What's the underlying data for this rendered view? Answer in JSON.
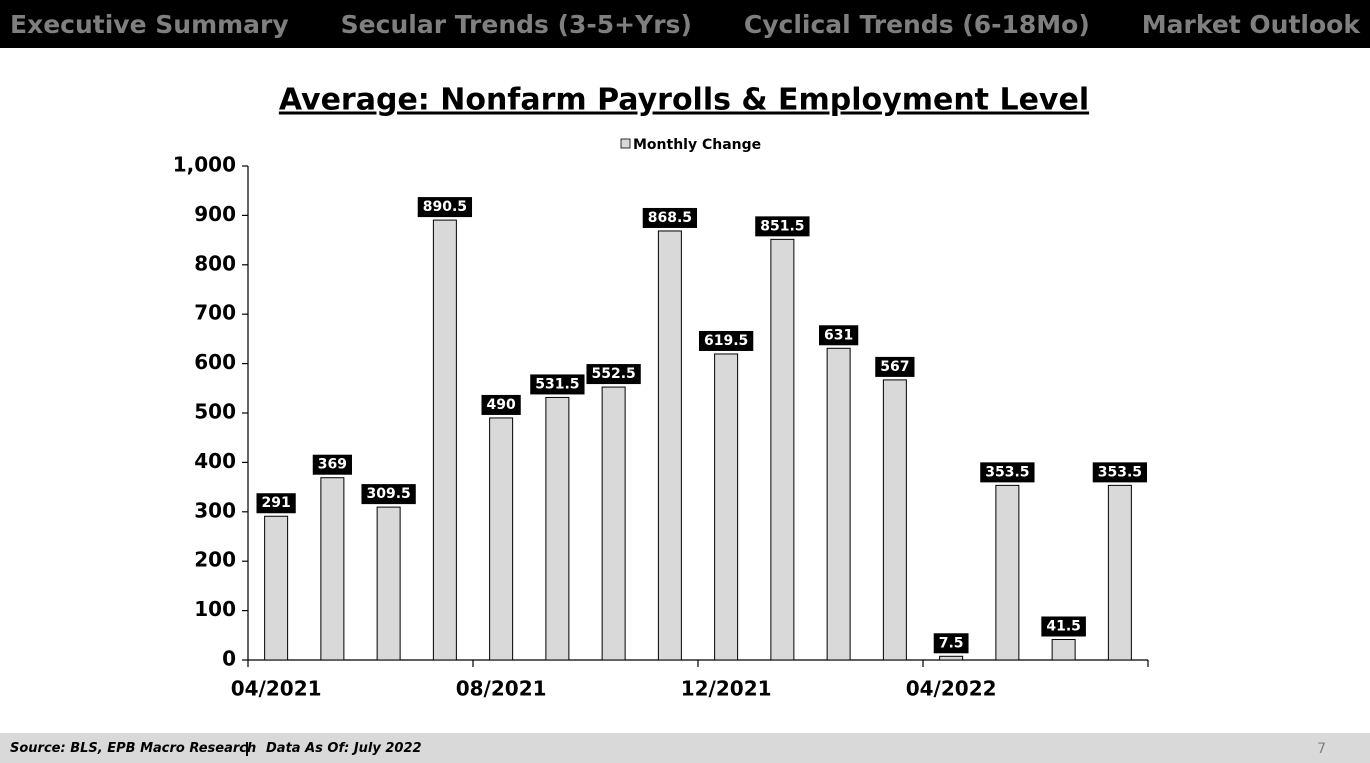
{
  "nav": [
    "Executive Summary",
    "Secular Trends (3-5+Yrs)",
    "Cyclical Trends (6-18Mo)",
    "Market Outlook"
  ],
  "chart_data": {
    "type": "bar",
    "title": "Average: Nonfarm Payrolls & Employment Level",
    "categories": [
      "04/2021",
      null,
      null,
      null,
      "08/2021",
      null,
      null,
      null,
      "12/2021",
      null,
      null,
      null,
      "04/2022",
      null,
      null,
      null
    ],
    "series": [
      {
        "name": "Monthly Change",
        "color": "#d9d9d9",
        "values": [
          291,
          369,
          309.5,
          890.5,
          490,
          531.5,
          552.5,
          868.5,
          619.5,
          851.5,
          631,
          567,
          7.5,
          353.5,
          41.5,
          353.5
        ]
      }
    ],
    "ylim": [
      0,
      1000
    ],
    "yticks": [
      0,
      100,
      200,
      300,
      400,
      500,
      600,
      700,
      800,
      900,
      {
        "value": 1000,
        "label": "1,000"
      }
    ],
    "grid": false,
    "legend": "top"
  },
  "footer": {
    "source": "Source: BLS, EPB Macro Research",
    "date": "Data As Of: July 2022",
    "page": "7"
  }
}
